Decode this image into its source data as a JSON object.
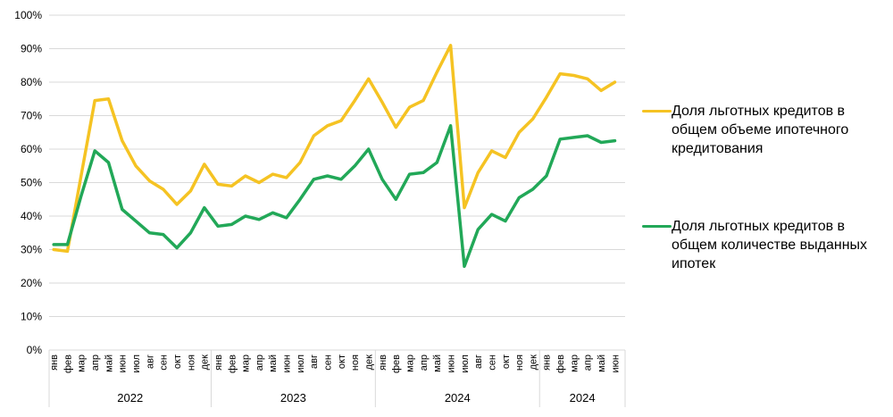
{
  "chart_data": {
    "type": "line",
    "title": "",
    "xlabel": "",
    "ylabel": "",
    "ylim": [
      0,
      100
    ],
    "grid": true,
    "grid_color": "#d9d9d9",
    "text_color": "#000000",
    "legend_position": "right",
    "y_ticks": [
      "0%",
      "10%",
      "20%",
      "30%",
      "40%",
      "50%",
      "60%",
      "70%",
      "80%",
      "90%",
      "100%"
    ],
    "x_groups": [
      {
        "label": "2022",
        "months": [
          "янв",
          "фев",
          "мар",
          "апр",
          "май",
          "июн",
          "июл",
          "авг",
          "сен",
          "окт",
          "ноя",
          "дек"
        ]
      },
      {
        "label": "2023",
        "months": [
          "янв",
          "фев",
          "мар",
          "апр",
          "май",
          "июн",
          "июл",
          "авг",
          "сен",
          "окт",
          "ноя",
          "дек"
        ]
      },
      {
        "label": "2024",
        "months": [
          "янв",
          "фев",
          "мар",
          "апр",
          "май",
          "июн",
          "июл",
          "авг",
          "сен",
          "окт",
          "ноя",
          "дек"
        ]
      },
      {
        "label": "2024",
        "months": [
          "янв",
          "фев",
          "мар",
          "апр",
          "май",
          "июн"
        ]
      }
    ],
    "series": [
      {
        "name": "Доля льготных кредитов в общем объеме ипотечного кредитования",
        "color": "#F5C323",
        "values": [
          30,
          29.5,
          52,
          74.5,
          75,
          62.5,
          55,
          50.5,
          48,
          43.5,
          47.5,
          55.5,
          49.5,
          49,
          52,
          50,
          52.5,
          51.5,
          56,
          64,
          67,
          68.5,
          74.5,
          81,
          74,
          66.5,
          72.5,
          74.5,
          83,
          91,
          42.5,
          53,
          59.5,
          57.5,
          65,
          69,
          75.5,
          82.5,
          82,
          81,
          77.5,
          80
        ]
      },
      {
        "name": "Доля льготных кредитов в общем количестве выданных ипотек",
        "color": "#22A858",
        "values": [
          31.5,
          31.5,
          46,
          59.5,
          56,
          42,
          38.5,
          35,
          34.5,
          30.5,
          35,
          42.5,
          37,
          37.5,
          40,
          39,
          41,
          39.5,
          45,
          51,
          52,
          51,
          55,
          60,
          51,
          45,
          52.5,
          53,
          56,
          67,
          25,
          36,
          40.5,
          38.5,
          45.5,
          48,
          52,
          63,
          63.5,
          64,
          62,
          62.5
        ]
      }
    ]
  }
}
